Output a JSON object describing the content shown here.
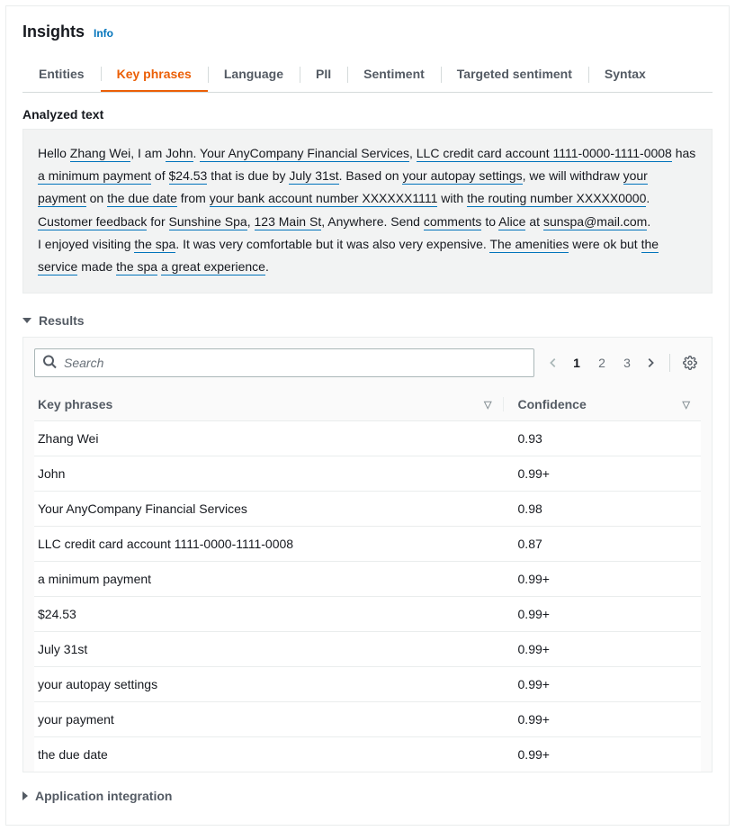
{
  "header": {
    "title": "Insights",
    "info": "Info"
  },
  "tabs": {
    "items": [
      "Entities",
      "Key phrases",
      "Language",
      "PII",
      "Sentiment",
      "Targeted sentiment",
      "Syntax"
    ],
    "active_index": 1
  },
  "analyzed": {
    "label": "Analyzed text",
    "segments": [
      {
        "t": "Hello ",
        "k": false
      },
      {
        "t": "Zhang Wei",
        "k": true
      },
      {
        "t": ", I am ",
        "k": false
      },
      {
        "t": "John",
        "k": true
      },
      {
        "t": ". ",
        "k": false
      },
      {
        "t": "Your AnyCompany Financial Services",
        "k": true
      },
      {
        "t": ", ",
        "k": false
      },
      {
        "t": "LLC credit card account 1111-0000-1111-0008",
        "k": true
      },
      {
        "t": " has ",
        "k": false
      },
      {
        "t": "a minimum payment",
        "k": true
      },
      {
        "t": " of ",
        "k": false
      },
      {
        "t": "$24.53",
        "k": true
      },
      {
        "t": " that is due by ",
        "k": false
      },
      {
        "t": "July 31st",
        "k": true
      },
      {
        "t": ". Based on ",
        "k": false
      },
      {
        "t": "your autopay settings",
        "k": true
      },
      {
        "t": ", we will withdraw ",
        "k": false
      },
      {
        "t": "your payment",
        "k": true
      },
      {
        "t": " on ",
        "k": false
      },
      {
        "t": "the due date",
        "k": true
      },
      {
        "t": " from ",
        "k": false
      },
      {
        "t": "your bank account number XXXXXX1111",
        "k": true
      },
      {
        "t": " with ",
        "k": false
      },
      {
        "t": "the routing number XXXXX0000",
        "k": true
      },
      {
        "t": ".",
        "k": false
      },
      {
        "t": "\n",
        "k": false
      },
      {
        "t": "Customer feedback",
        "k": true
      },
      {
        "t": " for ",
        "k": false
      },
      {
        "t": "Sunshine Spa",
        "k": true
      },
      {
        "t": ", ",
        "k": false
      },
      {
        "t": "123 Main St",
        "k": true
      },
      {
        "t": ", Anywhere. Send ",
        "k": false
      },
      {
        "t": "comments",
        "k": true
      },
      {
        "t": " to ",
        "k": false
      },
      {
        "t": "Alice",
        "k": true
      },
      {
        "t": " at ",
        "k": false
      },
      {
        "t": "sunspa@mail.com",
        "k": true
      },
      {
        "t": ".",
        "k": false
      },
      {
        "t": "\n",
        "k": false
      },
      {
        "t": "I enjoyed visiting ",
        "k": false
      },
      {
        "t": "the spa",
        "k": true
      },
      {
        "t": ". It was very comfortable but it was also very expensive. ",
        "k": false
      },
      {
        "t": "The amenities",
        "k": true
      },
      {
        "t": " were ok but ",
        "k": false
      },
      {
        "t": "the service",
        "k": true
      },
      {
        "t": " made ",
        "k": false
      },
      {
        "t": "the spa",
        "k": true
      },
      {
        "t": " ",
        "k": false
      },
      {
        "t": "a great experience",
        "k": true
      },
      {
        "t": ".",
        "k": false
      }
    ]
  },
  "results": {
    "label": "Results",
    "search_placeholder": "Search",
    "pagination": {
      "pages": [
        "1",
        "2",
        "3"
      ],
      "current": 1
    },
    "columns": {
      "phrase": "Key phrases",
      "confidence": "Confidence"
    },
    "rows": [
      {
        "phrase": "Zhang Wei",
        "confidence": "0.93"
      },
      {
        "phrase": "John",
        "confidence": "0.99+"
      },
      {
        "phrase": "Your AnyCompany Financial Services",
        "confidence": "0.98"
      },
      {
        "phrase": "LLC credit card account 1111-0000-1111-0008",
        "confidence": "0.87"
      },
      {
        "phrase": "a minimum payment",
        "confidence": "0.99+"
      },
      {
        "phrase": "$24.53",
        "confidence": "0.99+"
      },
      {
        "phrase": "July 31st",
        "confidence": "0.99+"
      },
      {
        "phrase": "your autopay settings",
        "confidence": "0.99+"
      },
      {
        "phrase": "your payment",
        "confidence": "0.99+"
      },
      {
        "phrase": "the due date",
        "confidence": "0.99+"
      }
    ]
  },
  "app_integration": {
    "label": "Application integration"
  },
  "colors": {
    "link": "#0073bb",
    "active_tab": "#eb5f07",
    "border": "#eaeded",
    "muted": "#545b64",
    "bg_panel": "#fafafa",
    "bg_box": "#f2f3f3"
  }
}
